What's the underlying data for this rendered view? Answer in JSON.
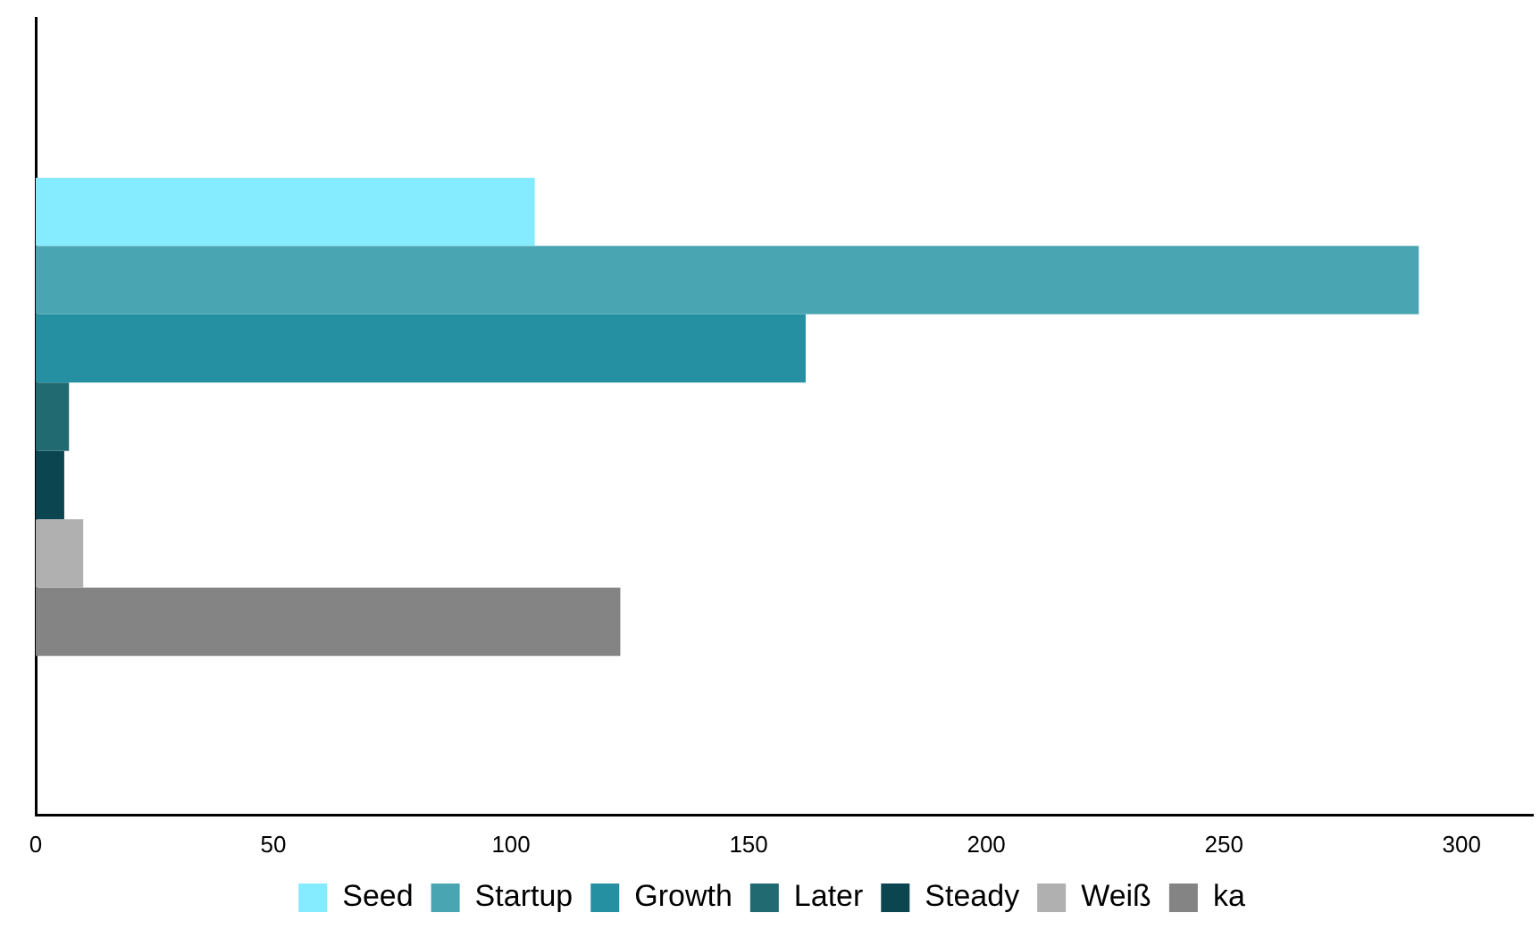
{
  "chart_data": {
    "type": "bar",
    "orientation": "horizontal",
    "categories": [
      null
    ],
    "series": [
      {
        "name": "Seed",
        "color": "#85ebfe",
        "values": [
          105
        ]
      },
      {
        "name": "Startup",
        "color": "#4aa5b2",
        "values": [
          291
        ]
      },
      {
        "name": "Growth",
        "color": "#2690a3",
        "values": [
          162
        ]
      },
      {
        "name": "Later",
        "color": "#226a72",
        "values": [
          7
        ]
      },
      {
        "name": "Steady",
        "color": "#0b4550",
        "values": [
          6
        ]
      },
      {
        "name": "Weiß",
        "color": "#b0b0b0",
        "values": [
          10
        ]
      },
      {
        "name": "ka",
        "color": "#848484",
        "values": [
          123
        ]
      }
    ],
    "xlim": [
      0,
      315
    ],
    "xticks": [
      0,
      50,
      100,
      150,
      200,
      250,
      300
    ],
    "grid": false,
    "legend": "bottom"
  }
}
